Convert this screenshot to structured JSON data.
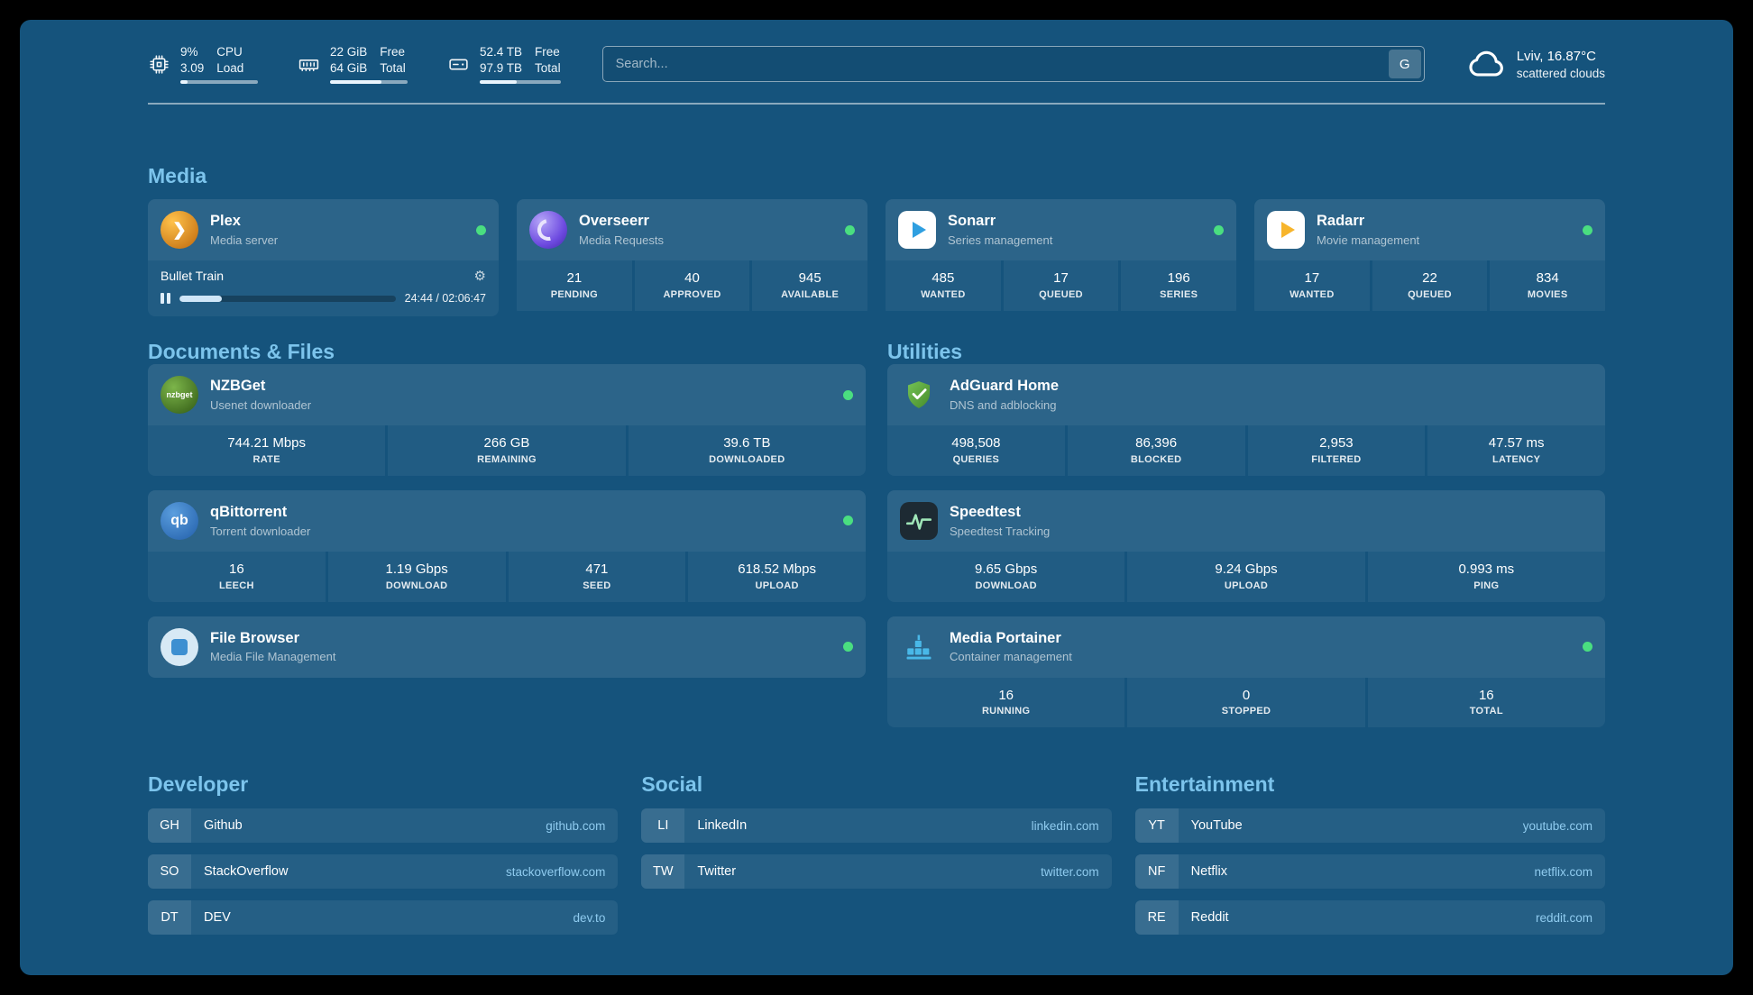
{
  "colors": {
    "background": "#15537C",
    "accent": "#7CC4EC",
    "status_online": "#4ADE80",
    "domain_link": "#8FCBEF"
  },
  "topbar": {
    "resources": [
      {
        "icon": "cpu-icon",
        "value_top": "9%",
        "value_bottom": "3.09",
        "label_top": "CPU",
        "label_bottom": "Load",
        "progress_percent": 9
      },
      {
        "icon": "memory-icon",
        "value_top": "22 GiB",
        "value_bottom": "64 GiB",
        "label_top": "Free",
        "label_bottom": "Total",
        "progress_percent": 66
      },
      {
        "icon": "disk-icon",
        "value_top": "52.4 TB",
        "value_bottom": "97.9 TB",
        "label_top": "Free",
        "label_bottom": "Total",
        "progress_percent": 46
      }
    ],
    "search": {
      "placeholder": "Search...",
      "provider_button": "G"
    },
    "weather": {
      "icon": "cloud-icon",
      "location": "Lviv, 16.87°C",
      "condition": "scattered clouds"
    }
  },
  "sections": {
    "media": {
      "title": "Media",
      "cards": [
        {
          "name": "Plex",
          "subtitle": "Media server",
          "online": true,
          "icon": "plex-icon",
          "player": {
            "track": "Bullet Train",
            "time": "24:44 / 02:06:47",
            "progress_percent": 19.5
          }
        },
        {
          "name": "Overseerr",
          "subtitle": "Media Requests",
          "online": true,
          "icon": "overseerr-icon",
          "stats": [
            {
              "value": "21",
              "label": "PENDING"
            },
            {
              "value": "40",
              "label": "APPROVED"
            },
            {
              "value": "945",
              "label": "AVAILABLE"
            }
          ]
        },
        {
          "name": "Sonarr",
          "subtitle": "Series management",
          "online": true,
          "icon": "sonarr-icon",
          "stats": [
            {
              "value": "485",
              "label": "WANTED"
            },
            {
              "value": "17",
              "label": "QUEUED"
            },
            {
              "value": "196",
              "label": "SERIES"
            }
          ]
        },
        {
          "name": "Radarr",
          "subtitle": "Movie management",
          "online": true,
          "icon": "radarr-icon",
          "stats": [
            {
              "value": "17",
              "label": "WANTED"
            },
            {
              "value": "22",
              "label": "QUEUED"
            },
            {
              "value": "834",
              "label": "MOVIES"
            }
          ]
        }
      ]
    },
    "documents": {
      "title": "Documents & Files",
      "cards": [
        {
          "name": "NZBGet",
          "subtitle": "Usenet downloader",
          "online": true,
          "icon": "nzbget-icon",
          "icon_text": "nzbget",
          "stats": [
            {
              "value": "744.21 Mbps",
              "label": "RATE"
            },
            {
              "value": "266 GB",
              "label": "REMAINING"
            },
            {
              "value": "39.6 TB",
              "label": "DOWNLOADED"
            }
          ]
        },
        {
          "name": "qBittorrent",
          "subtitle": "Torrent downloader",
          "online": true,
          "icon": "qbittorrent-icon",
          "icon_text": "qb",
          "stats": [
            {
              "value": "16",
              "label": "LEECH"
            },
            {
              "value": "1.19 Gbps",
              "label": "DOWNLOAD"
            },
            {
              "value": "471",
              "label": "SEED"
            },
            {
              "value": "618.52 Mbps",
              "label": "UPLOAD"
            }
          ]
        },
        {
          "name": "File Browser",
          "subtitle": "Media File Management",
          "online": true,
          "icon": "filebrowser-icon",
          "stats": []
        }
      ]
    },
    "utilities": {
      "title": "Utilities",
      "cards": [
        {
          "name": "AdGuard Home",
          "subtitle": "DNS and adblocking",
          "online": false,
          "icon": "adguard-icon",
          "stats": [
            {
              "value": "498,508",
              "label": "QUERIES"
            },
            {
              "value": "86,396",
              "label": "BLOCKED"
            },
            {
              "value": "2,953",
              "label": "FILTERED"
            },
            {
              "value": "47.57 ms",
              "label": "LATENCY"
            }
          ]
        },
        {
          "name": "Speedtest",
          "subtitle": "Speedtest Tracking",
          "online": false,
          "icon": "speedtest-icon",
          "stats": [
            {
              "value": "9.65 Gbps",
              "label": "DOWNLOAD"
            },
            {
              "value": "9.24 Gbps",
              "label": "UPLOAD"
            },
            {
              "value": "0.993 ms",
              "label": "PING"
            }
          ]
        },
        {
          "name": "Media Portainer",
          "subtitle": "Container management",
          "online": true,
          "icon": "portainer-icon",
          "stats": [
            {
              "value": "16",
              "label": "RUNNING"
            },
            {
              "value": "0",
              "label": "STOPPED"
            },
            {
              "value": "16",
              "label": "TOTAL"
            }
          ]
        }
      ]
    },
    "bookmarks": [
      {
        "title": "Developer",
        "items": [
          {
            "abbr": "GH",
            "name": "Github",
            "domain": "github.com"
          },
          {
            "abbr": "SO",
            "name": "StackOverflow",
            "domain": "stackoverflow.com"
          },
          {
            "abbr": "DT",
            "name": "DEV",
            "domain": "dev.to"
          }
        ]
      },
      {
        "title": "Social",
        "items": [
          {
            "abbr": "LI",
            "name": "LinkedIn",
            "domain": "linkedin.com"
          },
          {
            "abbr": "TW",
            "name": "Twitter",
            "domain": "twitter.com"
          }
        ]
      },
      {
        "title": "Entertainment",
        "items": [
          {
            "abbr": "YT",
            "name": "YouTube",
            "domain": "youtube.com"
          },
          {
            "abbr": "NF",
            "name": "Netflix",
            "domain": "netflix.com"
          },
          {
            "abbr": "RE",
            "name": "Reddit",
            "domain": "reddit.com"
          }
        ]
      }
    ]
  }
}
